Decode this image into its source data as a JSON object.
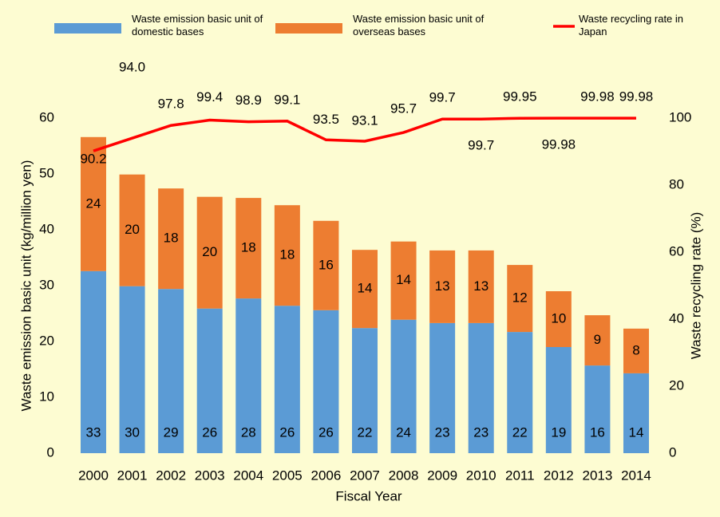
{
  "chart_data": {
    "type": "bar",
    "stacked": true,
    "categories": [
      "2000",
      "2001",
      "2002",
      "2003",
      "2004",
      "2005",
      "2006",
      "2007",
      "2008",
      "2009",
      "2010",
      "2011",
      "2012",
      "2013",
      "2014"
    ],
    "series": [
      {
        "name": "Waste emission basic unit of domestic bases",
        "color": "#5b9bd5",
        "values": [
          32.6,
          29.9,
          29.4,
          25.9,
          27.7,
          26.4,
          25.6,
          22.4,
          23.9,
          23.3,
          23.3,
          21.7,
          19.0,
          15.7,
          14.3
        ]
      },
      {
        "name": "Waste emission basic unit of overseas bases",
        "color": "#ed7d31",
        "values": [
          24,
          20,
          18,
          20,
          18,
          18,
          16,
          14,
          14,
          13,
          13,
          12,
          10,
          9,
          8
        ]
      },
      {
        "name": "Waste recycling rate in Japan",
        "color": "#ff0000",
        "type": "line",
        "axis": "y2",
        "values": [
          90.2,
          94,
          97.8,
          99.4,
          98.9,
          99.1,
          93.5,
          93.1,
          95.7,
          99.7,
          99.7,
          99.95,
          99.98,
          99.98,
          99.98
        ],
        "value_labels": [
          "90.2",
          "94.0",
          "97.8",
          "99.4",
          "98.9",
          "99.1",
          "93.5",
          "93.1",
          "95.7",
          "99.7",
          "99.7",
          "99.95",
          "99.98",
          "99.98",
          "99.98"
        ]
      }
    ],
    "xlabel": "Fiscal Year",
    "ylabel": "Waste emission basic unit (kg/million yen)",
    "y2label": "Waste recycling rate (%)",
    "ylim": [
      0,
      60
    ],
    "yticks": [
      0,
      10,
      20,
      30,
      40,
      50,
      60
    ],
    "y2lim": [
      0,
      100
    ],
    "y2ticks": [
      0,
      20,
      40,
      60,
      80,
      100
    ]
  }
}
